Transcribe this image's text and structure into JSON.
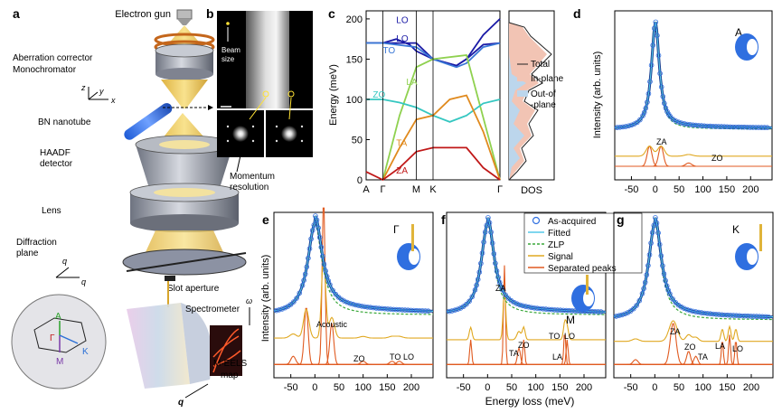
{
  "panel_letters": {
    "a": "a",
    "b": "b",
    "c": "c",
    "d": "d",
    "e": "e",
    "f": "f",
    "g": "g"
  },
  "panel_a": {
    "electron_gun": "Electron gun",
    "aberration_corrector": "Aberration corrector",
    "monochromator": "Monochromator",
    "bn_nanotube": "BN nanotube",
    "haadf": "HAADF",
    "detector": "detector",
    "lens": "Lens",
    "diffraction": "Diffraction",
    "plane": "plane",
    "slot_aperture": "Slot aperture",
    "spectrometer": "Spectrometer",
    "meels": "M-EELS",
    "map": "map",
    "axis_x": "x",
    "axis_y": "y",
    "axis_z": "z",
    "axis_qx": "q",
    "axis_qy": "q",
    "axis_omega": "ω",
    "axis_q": "q",
    "bz_labels": {
      "A": "A",
      "Gamma": "Γ",
      "M": "M",
      "K": "K"
    }
  },
  "panel_b": {
    "beam": "Beam",
    "size": "size",
    "momentum": "Momentum",
    "resolution": "resolution"
  },
  "panel_c": {
    "ylabel": "Energy (meV)",
    "dos_label": "DOS",
    "legend": [
      "Total",
      "In-plane",
      "Out-of-plane"
    ],
    "legend_outplane_1": "Out-of",
    "legend_outplane_2": "-plane",
    "colors": {
      "LO": "#1a1aa6",
      "TO": "#3a78d6",
      "LA": "#8fd14f",
      "ZO": "#35c7c1",
      "TA": "#e08a1e",
      "ZA": "#c01818",
      "inplane": "#f2c4b4",
      "outplane": "#bcd6ec"
    }
  },
  "panel_d": {
    "ylabel": "Intensity (arb. units)",
    "inset": "A",
    "labels": {
      "ZA": "ZA",
      "ZO": "ZO"
    }
  },
  "panel_e": {
    "ylabel": "Intensity (arb. units)",
    "inset": "Γ",
    "labels": {
      "Acoustic": "Acoustic",
      "ZO": "ZO",
      "TO": "TO",
      "LO": "LO"
    }
  },
  "panel_f": {
    "xlabel": "Energy loss (meV)",
    "inset": "M",
    "labels": {
      "ZA": "ZA",
      "TA": "TA",
      "ZO": "ZO",
      "TO": "TO",
      "LO": "LO",
      "LA": "LA"
    },
    "legend": [
      "As-acquired",
      "Fitted",
      "ZLP",
      "Signal",
      "Separated peaks"
    ]
  },
  "panel_g": {
    "inset": "K",
    "labels": {
      "ZA": "ZA",
      "ZO": "ZO",
      "TA": "TA",
      "LA": "LA",
      "LO": "LO"
    }
  },
  "chart_data": [
    {
      "type": "line",
      "panel": "c",
      "x_categories": [
        "A",
        "Γ",
        "M",
        "K",
        "Γ"
      ],
      "ylabel": "Energy (meV)",
      "ylim": [
        0,
        210
      ],
      "series": [
        {
          "name": "LO",
          "x": [
            0,
            0.5,
            1.5,
            2.0,
            2.7,
            3.0,
            3.5,
            4.0
          ],
          "values": [
            170,
            170,
            170,
            150,
            142,
            150,
            180,
            200
          ]
        },
        {
          "name": "LO",
          "x": [
            0,
            0.5,
            0.9,
            1.3,
            1.5,
            2.0,
            2.7,
            3.0,
            3.5,
            4.0
          ],
          "values": [
            170,
            170,
            175,
            168,
            160,
            150,
            142,
            150,
            168,
            170
          ]
        },
        {
          "name": "TO",
          "x": [
            0,
            0.5,
            1.5,
            2.0,
            2.7,
            3.0,
            3.5,
            4.0
          ],
          "values": [
            170,
            170,
            165,
            150,
            140,
            145,
            165,
            170
          ]
        },
        {
          "name": "LA",
          "x": [
            0.5,
            1.0,
            1.5,
            2.0,
            3.0,
            4.0
          ],
          "values": [
            0,
            80,
            140,
            150,
            155,
            0
          ]
        },
        {
          "name": "ZO",
          "x": [
            0,
            0.5,
            1.0,
            1.5,
            2.0,
            2.5,
            3.0,
            3.5,
            4.0
          ],
          "values": [
            100,
            100,
            96,
            90,
            80,
            72,
            80,
            95,
            100
          ]
        },
        {
          "name": "TA",
          "x": [
            0.5,
            1.0,
            1.5,
            2.0,
            2.5,
            3.0,
            3.5,
            4.0
          ],
          "values": [
            0,
            40,
            75,
            80,
            100,
            105,
            60,
            0
          ]
        },
        {
          "name": "ZA",
          "x": [
            0,
            0.5,
            1.0,
            1.5,
            2.0,
            3.0,
            3.5,
            4.0
          ],
          "values": [
            10,
            0,
            15,
            35,
            40,
            40,
            15,
            0
          ]
        }
      ],
      "annotations": [
        "LO",
        "LO",
        "TO",
        "LA",
        "ZO",
        "TA",
        "ZA"
      ]
    },
    {
      "type": "area",
      "panel": "c-dos",
      "xlabel": "DOS",
      "series": [
        "Total",
        "In-plane",
        "Out-of-plane"
      ]
    },
    {
      "type": "scatter",
      "panel": "d",
      "x": [
        -75,
        -50,
        -25,
        -15,
        -10,
        -5,
        0,
        5,
        10,
        15,
        25,
        50,
        75,
        100,
        125,
        150,
        175,
        200,
        225
      ],
      "xticks": [
        -50,
        0,
        50,
        100,
        150,
        200
      ],
      "xlim": [
        -85,
        245
      ],
      "ylabel": "Intensity (arb. units)",
      "values": [
        0.04,
        0.05,
        0.08,
        0.15,
        0.35,
        0.8,
        1.0,
        0.8,
        0.35,
        0.15,
        0.07,
        0.05,
        0.045,
        0.045,
        0.04,
        0.04,
        0.04,
        0.04,
        0.04
      ]
    },
    {
      "type": "scatter",
      "panel": "e",
      "xticks": [
        -50,
        0,
        50,
        100,
        150,
        200
      ],
      "xlim": [
        -85,
        245
      ]
    },
    {
      "type": "scatter",
      "panel": "f",
      "xticks": [
        -50,
        0,
        50,
        100,
        150,
        200
      ],
      "xlim": [
        -85,
        245
      ],
      "xlabel": "Energy loss (meV)"
    },
    {
      "type": "scatter",
      "panel": "g",
      "xticks": [
        -50,
        0,
        50,
        100,
        150,
        200
      ],
      "xlim": [
        -85,
        245
      ]
    }
  ]
}
